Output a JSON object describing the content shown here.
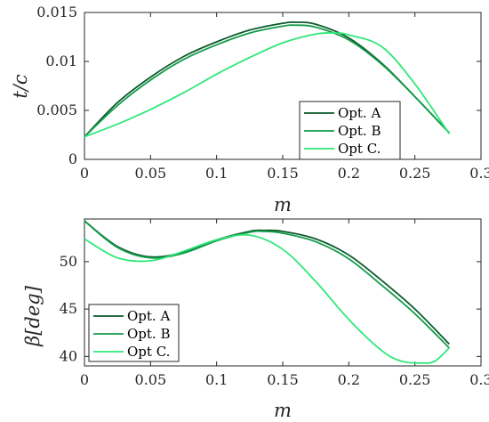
{
  "colors": {
    "opt_a": "#0d5a2c",
    "opt_b": "#139c4a",
    "opt_c": "#2ee87a"
  },
  "chart_data": [
    {
      "type": "line",
      "xlabel": "m",
      "ylabel": "t/c",
      "xlim": [
        0,
        0.3
      ],
      "ylim": [
        0,
        0.015
      ],
      "xticks": [
        "0",
        "0.05",
        "0.1",
        "0.15",
        "0.2",
        "0.25",
        "0.3"
      ],
      "yticks": [
        "0",
        "0.005",
        "0.01",
        "0.015"
      ],
      "grid": false,
      "legend_position": "bottom-right",
      "series": [
        {
          "name": "Opt. A",
          "x": [
            0,
            0.025,
            0.05,
            0.075,
            0.1,
            0.125,
            0.15,
            0.16,
            0.175,
            0.2,
            0.225,
            0.25,
            0.276
          ],
          "y": [
            0.0023,
            0.0058,
            0.0084,
            0.0105,
            0.012,
            0.0132,
            0.0139,
            0.014,
            0.0138,
            0.0124,
            0.0098,
            0.0064,
            0.0027
          ]
        },
        {
          "name": "Opt. B",
          "x": [
            0,
            0.025,
            0.05,
            0.075,
            0.1,
            0.125,
            0.15,
            0.16,
            0.175,
            0.2,
            0.225,
            0.25,
            0.276
          ],
          "y": [
            0.0023,
            0.0055,
            0.0081,
            0.0102,
            0.0117,
            0.0129,
            0.0136,
            0.0137,
            0.0135,
            0.0122,
            0.0097,
            0.0064,
            0.0027
          ]
        },
        {
          "name": "Opt C.",
          "x": [
            0,
            0.025,
            0.05,
            0.075,
            0.1,
            0.125,
            0.15,
            0.175,
            0.19,
            0.2,
            0.225,
            0.25,
            0.276
          ],
          "y": [
            0.0023,
            0.0036,
            0.0051,
            0.0068,
            0.0087,
            0.0104,
            0.0119,
            0.0128,
            0.0129,
            0.0127,
            0.0115,
            0.0077,
            0.0026
          ]
        }
      ]
    },
    {
      "type": "line",
      "xlabel": "m",
      "ylabel": "β[deg]",
      "xlim": [
        0,
        0.3
      ],
      "ylim": [
        39,
        54.5
      ],
      "xticks": [
        "0",
        "0.05",
        "0.1",
        "0.15",
        "0.2",
        "0.25",
        "0.3"
      ],
      "yticks": [
        "40",
        "45",
        "50"
      ],
      "grid": false,
      "legend_position": "bottom-left",
      "series": [
        {
          "name": "Opt. A",
          "x": [
            0,
            0.025,
            0.05,
            0.075,
            0.1,
            0.125,
            0.135,
            0.15,
            0.175,
            0.2,
            0.225,
            0.25,
            0.276
          ],
          "y": [
            54.3,
            51.6,
            50.5,
            51.0,
            52.3,
            53.2,
            53.3,
            53.2,
            52.4,
            50.7,
            48.0,
            45.0,
            41.3
          ]
        },
        {
          "name": "Opt. B",
          "x": [
            0,
            0.025,
            0.05,
            0.075,
            0.1,
            0.125,
            0.135,
            0.15,
            0.175,
            0.2,
            0.225,
            0.25,
            0.276
          ],
          "y": [
            54.3,
            51.5,
            50.4,
            50.9,
            52.2,
            53.1,
            53.2,
            53.0,
            52.1,
            50.3,
            47.5,
            44.5,
            40.9
          ]
        },
        {
          "name": "Opt C.",
          "x": [
            0,
            0.025,
            0.05,
            0.075,
            0.1,
            0.125,
            0.15,
            0.175,
            0.2,
            0.225,
            0.24,
            0.255,
            0.265,
            0.276
          ],
          "y": [
            52.4,
            50.4,
            50.1,
            51.1,
            52.3,
            52.8,
            51.3,
            47.9,
            43.9,
            40.6,
            39.5,
            39.3,
            39.5,
            40.9
          ]
        }
      ]
    }
  ]
}
